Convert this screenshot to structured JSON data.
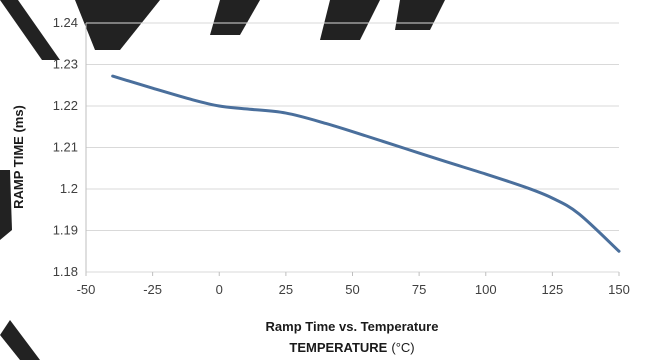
{
  "chart_data": {
    "type": "line",
    "title": "Ramp Time vs. Temperature",
    "xlabel": "TEMPERATURE",
    "xlabel_unit": "(°C)",
    "ylabel": "RAMP TIME (ms)",
    "xlim": [
      -50,
      150
    ],
    "ylim": [
      1.18,
      1.24
    ],
    "x_ticks": [
      "-50",
      "-25",
      "0",
      "25",
      "50",
      "75",
      "100",
      "125",
      "150"
    ],
    "y_ticks": [
      "1.24",
      "1.23",
      "1.22",
      "1.21",
      "1.2",
      "1.19",
      "1.18"
    ],
    "grid": true,
    "series": [
      {
        "color": "#4a6f9c",
        "x": [
          -40,
          -25,
          -10,
          0,
          10,
          25,
          40,
          55,
          70,
          85,
          100,
          115,
          125,
          135,
          150
        ],
        "y": [
          1.2272,
          1.2243,
          1.2215,
          1.22,
          1.2193,
          1.2183,
          1.2158,
          1.2128,
          1.2097,
          1.2066,
          1.2036,
          1.2004,
          1.1978,
          1.194,
          1.185
        ]
      }
    ]
  },
  "colors": {
    "grid": "#d9d9d9",
    "axis": "#bfbfbf"
  }
}
